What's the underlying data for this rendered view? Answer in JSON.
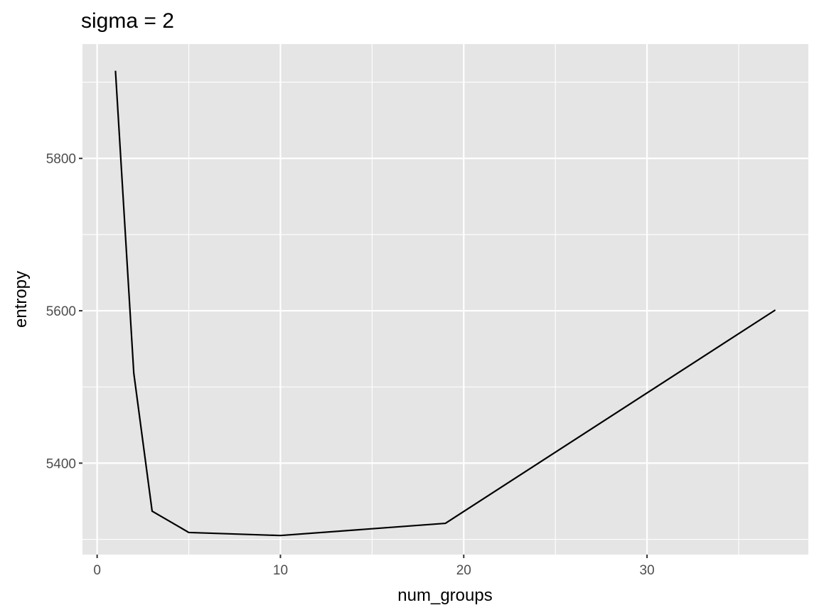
{
  "chart_data": {
    "type": "line",
    "title": "sigma = 2",
    "xlabel": "num_groups",
    "ylabel": "entropy",
    "x": [
      1,
      2,
      3,
      5,
      10,
      19,
      37
    ],
    "series": [
      {
        "values": [
          5915,
          5518,
          5337,
          5309,
          5305,
          5321,
          5601
        ]
      }
    ],
    "xlim": [
      -0.8,
      38.8
    ],
    "ylim": [
      5280,
      5950
    ],
    "x_ticks": [
      0,
      10,
      20,
      30
    ],
    "x_minor_ticks": [
      5,
      15,
      25,
      35
    ],
    "y_ticks": [
      5400,
      5600,
      5800
    ],
    "y_minor_ticks": [
      5300,
      5500,
      5700,
      5900
    ],
    "grid": true,
    "colors": {
      "panel_background": "#e5e5e5",
      "grid": "#ffffff",
      "line": "#000000",
      "tick_text": "#4d4d4d",
      "tick_mark": "#333333"
    }
  }
}
